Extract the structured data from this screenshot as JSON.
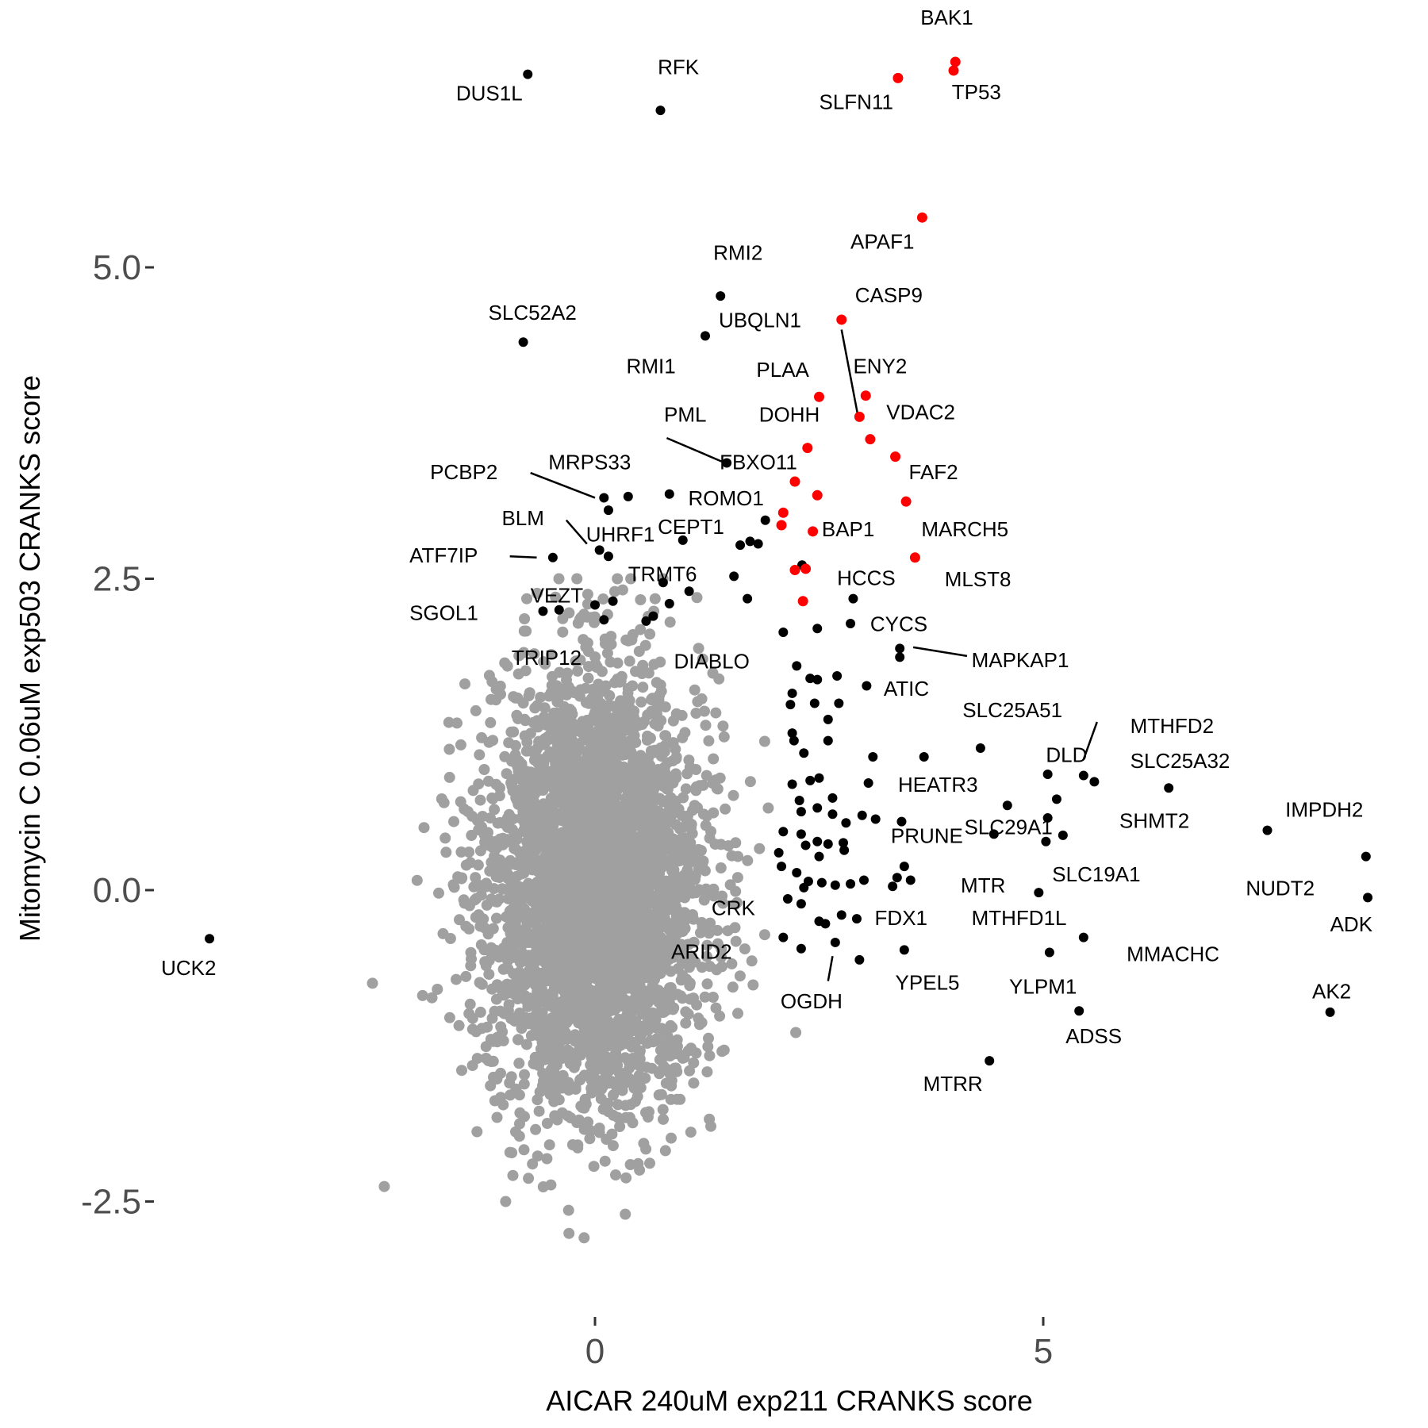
{
  "chart_data": {
    "type": "scatter",
    "title": "",
    "xlabel": "AICAR 240uM exp211 CRANKS score",
    "ylabel": "Mitomycin C 0.06uM exp503 CRANKS score",
    "xlim": [
      -5.0,
      8.8
    ],
    "ylim": [
      -3.38,
      5.78
    ],
    "x_ticks": [
      {
        "value": 0,
        "label": "0"
      },
      {
        "value": 5,
        "label": "5"
      }
    ],
    "y_ticks": [
      {
        "value": -2.5,
        "label": "-2.5"
      },
      {
        "value": 0.0,
        "label": "0.0"
      },
      {
        "value": 2.5,
        "label": "2.5"
      },
      {
        "value": 5.0,
        "label": "5.0"
      }
    ],
    "grid": false,
    "colors": {
      "background": "#ffffff",
      "background_genes": "#a0a0a0",
      "highlighted_genes": "#000000",
      "apoptosis_genes": "#ff0000"
    },
    "background_cloud": {
      "description_count": 4000,
      "center": [
        0.0,
        0.0
      ],
      "sd": [
        0.6,
        0.85
      ]
    },
    "red_points": [
      {
        "label": "BAK1",
        "x": 4.02,
        "y": 6.65
      },
      {
        "label": "TP53",
        "x": 4.0,
        "y": 6.58
      },
      {
        "label": "SLFN11",
        "x": 3.38,
        "y": 6.52
      },
      {
        "label": "APAF1",
        "x": 3.65,
        "y": 5.4
      },
      {
        "label": "CASP9",
        "x": 2.75,
        "y": 4.58
      },
      {
        "label": "ENY2",
        "x": 3.02,
        "y": 3.97
      },
      {
        "label": "PLAA",
        "x": 2.5,
        "y": 3.96
      },
      {
        "label": "DOHH",
        "x": 2.95,
        "y": 3.8
      },
      {
        "label": "VDAC2",
        "x": 3.07,
        "y": 3.62
      },
      {
        "label": "FBXO11",
        "x": 2.37,
        "y": 3.55
      },
      {
        "label": "FAF2",
        "x": 3.35,
        "y": 3.48
      },
      {
        "label": "ROMO1",
        "x": 2.23,
        "y": 3.28
      },
      {
        "label": "",
        "x": 2.48,
        "y": 3.17
      },
      {
        "label": "MARCH5",
        "x": 3.47,
        "y": 3.12
      },
      {
        "label": "",
        "x": 2.1,
        "y": 3.03
      },
      {
        "label": "",
        "x": 2.08,
        "y": 2.93
      },
      {
        "label": "BAP1",
        "x": 2.43,
        "y": 2.88
      },
      {
        "label": "MLST8",
        "x": 3.57,
        "y": 2.67
      },
      {
        "label": "",
        "x": 2.23,
        "y": 2.57
      },
      {
        "label": "",
        "x": 2.35,
        "y": 2.58
      },
      {
        "label": "",
        "x": 2.32,
        "y": 2.32
      }
    ],
    "black_points": [
      {
        "label": "DUS1L",
        "x": -0.75,
        "y": 6.55
      },
      {
        "label": "RFK",
        "x": 0.73,
        "y": 6.26
      },
      {
        "label": "RMI2",
        "x": 1.4,
        "y": 4.77
      },
      {
        "label": "SLC52A2",
        "x": -0.8,
        "y": 4.4
      },
      {
        "label": "RMI1",
        "x": 1.23,
        "y": 4.45
      },
      {
        "label": "PML",
        "x": 1.47,
        "y": 3.43
      },
      {
        "label": "PCBP2",
        "x": 0.1,
        "y": 3.15
      },
      {
        "label": "MRPS33",
        "x": 0.37,
        "y": 3.16
      },
      {
        "label": "",
        "x": 0.83,
        "y": 3.18
      },
      {
        "label": "",
        "x": 0.15,
        "y": 3.05
      },
      {
        "label": "CEPT1",
        "x": 0.98,
        "y": 2.81
      },
      {
        "label": "",
        "x": 1.9,
        "y": 2.97
      },
      {
        "label": "",
        "x": 1.62,
        "y": 2.77
      },
      {
        "label": "",
        "x": 1.73,
        "y": 2.8
      },
      {
        "label": "",
        "x": 1.82,
        "y": 2.78
      },
      {
        "label": "BLM",
        "x": 0.05,
        "y": 2.73
      },
      {
        "label": "UHRF1",
        "x": 0.15,
        "y": 2.68
      },
      {
        "label": "ATF7IP",
        "x": -0.47,
        "y": 2.67
      },
      {
        "label": "HCCS",
        "x": 2.31,
        "y": 2.61
      },
      {
        "label": "TRMT6",
        "x": 1.55,
        "y": 2.52
      },
      {
        "label": "",
        "x": 0.76,
        "y": 2.47
      },
      {
        "label": "",
        "x": 1.05,
        "y": 2.4
      },
      {
        "label": "",
        "x": 1.7,
        "y": 2.34
      },
      {
        "label": "VEZT",
        "x": 0.2,
        "y": 2.32
      },
      {
        "label": "",
        "x": 0.0,
        "y": 2.29
      },
      {
        "label": "",
        "x": 0.83,
        "y": 2.3
      },
      {
        "label": "",
        "x": 2.88,
        "y": 2.34
      },
      {
        "label": "SGOL1",
        "x": -0.58,
        "y": 2.24
      },
      {
        "label": "",
        "x": -0.4,
        "y": 2.25
      },
      {
        "label": "",
        "x": 0.65,
        "y": 2.2
      },
      {
        "label": "",
        "x": 0.57,
        "y": 2.16
      },
      {
        "label": "TRIP12",
        "x": 0.1,
        "y": 2.17
      },
      {
        "label": "CYCS",
        "x": 2.85,
        "y": 2.14
      },
      {
        "label": "",
        "x": 2.1,
        "y": 2.07
      },
      {
        "label": "",
        "x": 2.48,
        "y": 2.1
      },
      {
        "label": "MAPKAP1",
        "x": 3.4,
        "y": 1.94
      },
      {
        "label": "",
        "x": 3.4,
        "y": 1.87
      },
      {
        "label": "DIABLO",
        "x": 2.25,
        "y": 1.8
      },
      {
        "label": "",
        "x": 2.7,
        "y": 1.72
      },
      {
        "label": "",
        "x": 2.4,
        "y": 1.7
      },
      {
        "label": "",
        "x": 2.48,
        "y": 1.69
      },
      {
        "label": "ATIC",
        "x": 3.03,
        "y": 1.64
      },
      {
        "label": "",
        "x": 2.2,
        "y": 1.58
      },
      {
        "label": "",
        "x": 2.45,
        "y": 1.5
      },
      {
        "label": "",
        "x": 2.72,
        "y": 1.5
      },
      {
        "label": "",
        "x": 2.18,
        "y": 1.49
      },
      {
        "label": "",
        "x": 2.6,
        "y": 1.37
      },
      {
        "label": "",
        "x": 2.2,
        "y": 1.26
      },
      {
        "label": "",
        "x": 2.22,
        "y": 1.2
      },
      {
        "label": "",
        "x": 2.6,
        "y": 1.2
      },
      {
        "label": "",
        "x": 2.33,
        "y": 1.1
      },
      {
        "label": "SLC25A51",
        "x": 4.3,
        "y": 1.14
      },
      {
        "label": "",
        "x": 3.1,
        "y": 1.07
      },
      {
        "label": "",
        "x": 3.67,
        "y": 1.07
      },
      {
        "label": "MTHFD2",
        "x": 5.57,
        "y": 0.87
      },
      {
        "label": "DLD",
        "x": 5.45,
        "y": 0.92
      },
      {
        "label": "",
        "x": 5.05,
        "y": 0.93
      },
      {
        "label": "SLC25A32",
        "x": 6.4,
        "y": 0.82
      },
      {
        "label": "",
        "x": 2.5,
        "y": 0.9
      },
      {
        "label": "",
        "x": 2.4,
        "y": 0.88
      },
      {
        "label": "",
        "x": 3.05,
        "y": 0.86
      },
      {
        "label": "",
        "x": 2.2,
        "y": 0.85
      },
      {
        "label": "",
        "x": 2.65,
        "y": 0.74
      },
      {
        "label": "",
        "x": 2.28,
        "y": 0.72
      },
      {
        "label": "",
        "x": 2.48,
        "y": 0.66
      },
      {
        "label": "HEATR3",
        "x": 4.6,
        "y": 0.68
      },
      {
        "label": "",
        "x": 5.15,
        "y": 0.73
      },
      {
        "label": "",
        "x": 2.3,
        "y": 0.63
      },
      {
        "label": "",
        "x": 2.65,
        "y": 0.61
      },
      {
        "label": "",
        "x": 2.98,
        "y": 0.6
      },
      {
        "label": "",
        "x": 3.13,
        "y": 0.57
      },
      {
        "label": "",
        "x": 2.8,
        "y": 0.54
      },
      {
        "label": "",
        "x": 3.42,
        "y": 0.55
      },
      {
        "label": "SHMT2",
        "x": 5.05,
        "y": 0.58
      },
      {
        "label": "IMPDH2",
        "x": 7.5,
        "y": 0.48
      },
      {
        "label": "",
        "x": 2.1,
        "y": 0.47
      },
      {
        "label": "",
        "x": 2.3,
        "y": 0.45
      },
      {
        "label": "PRUNE",
        "x": 4.45,
        "y": 0.45
      },
      {
        "label": "SLC29A1",
        "x": 5.22,
        "y": 0.44
      },
      {
        "label": "",
        "x": 5.03,
        "y": 0.39
      },
      {
        "label": "",
        "x": 2.48,
        "y": 0.39
      },
      {
        "label": "",
        "x": 2.6,
        "y": 0.37
      },
      {
        "label": "",
        "x": 2.77,
        "y": 0.38
      },
      {
        "label": "",
        "x": 2.35,
        "y": 0.36
      },
      {
        "label": "",
        "x": 2.78,
        "y": 0.32
      },
      {
        "label": "",
        "x": 2.05,
        "y": 0.3
      },
      {
        "label": "",
        "x": 2.5,
        "y": 0.27
      },
      {
        "label": "NUDT2",
        "x": 8.6,
        "y": 0.27
      },
      {
        "label": "",
        "x": 2.08,
        "y": 0.19
      },
      {
        "label": "",
        "x": 3.45,
        "y": 0.19
      },
      {
        "label": "SLC19A1",
        "x": 3.37,
        "y": 0.1
      },
      {
        "label": "",
        "x": 3.52,
        "y": 0.08
      },
      {
        "label": "",
        "x": 2.25,
        "y": 0.14
      },
      {
        "label": "",
        "x": 2.38,
        "y": 0.07
      },
      {
        "label": "",
        "x": 2.53,
        "y": 0.06
      },
      {
        "label": "",
        "x": 2.33,
        "y": 0.02
      },
      {
        "label": "",
        "x": 2.68,
        "y": 0.04
      },
      {
        "label": "",
        "x": 3.0,
        "y": 0.08
      },
      {
        "label": "",
        "x": 3.32,
        "y": 0.03
      },
      {
        "label": "",
        "x": 2.85,
        "y": 0.05
      },
      {
        "label": "MTR",
        "x": 4.95,
        "y": -0.02
      },
      {
        "label": "ADK",
        "x": 8.62,
        "y": -0.06
      },
      {
        "label": "CRK",
        "x": 2.15,
        "y": -0.07
      },
      {
        "label": "",
        "x": 2.3,
        "y": -0.11
      },
      {
        "label": "FDX1",
        "x": 2.92,
        "y": -0.23
      },
      {
        "label": "",
        "x": 2.75,
        "y": -0.2
      },
      {
        "label": "",
        "x": 2.57,
        "y": -0.27
      },
      {
        "label": "",
        "x": 2.5,
        "y": -0.25
      },
      {
        "label": "MTHFD1L",
        "x": 5.45,
        "y": -0.38
      },
      {
        "label": "",
        "x": 2.1,
        "y": -0.38
      },
      {
        "label": "ARID2",
        "x": 2.68,
        "y": -0.42
      },
      {
        "label": "",
        "x": 2.3,
        "y": -0.47
      },
      {
        "label": "",
        "x": 3.45,
        "y": -0.48
      },
      {
        "label": "MMACHC",
        "x": 5.07,
        "y": -0.5
      },
      {
        "label": "OGDH",
        "x": 2.95,
        "y": -0.56
      },
      {
        "label": "UCK2",
        "x": -4.3,
        "y": -0.39
      },
      {
        "label": "ADSS",
        "x": 5.4,
        "y": -0.97
      },
      {
        "label": "AK2",
        "x": 8.2,
        "y": -0.98
      },
      {
        "label": "MTRR",
        "x": 4.4,
        "y": -1.37
      }
    ],
    "annotations": [
      {
        "text": "BAK1",
        "x": 3.63,
        "y": 6.95
      },
      {
        "text": "TP53",
        "x": 3.98,
        "y": 6.35
      },
      {
        "text": "SLFN11",
        "x": 2.5,
        "y": 6.27
      },
      {
        "text": "DUS1L",
        "x": -1.55,
        "y": 6.34
      },
      {
        "text": "RFK",
        "x": 0.7,
        "y": 6.55
      },
      {
        "text": "APAF1",
        "x": 2.85,
        "y": 5.15
      },
      {
        "text": "RMI2",
        "x": 1.32,
        "y": 5.06
      },
      {
        "text": "CASP9",
        "x": 2.9,
        "y": 4.72
      },
      {
        "text": "UBQLN1",
        "x": 1.38,
        "y": 4.52
      },
      {
        "text": "SLC52A2",
        "x": -1.19,
        "y": 4.58
      },
      {
        "text": "RMI1",
        "x": 0.35,
        "y": 4.15
      },
      {
        "text": "PLAA",
        "x": 1.8,
        "y": 4.12
      },
      {
        "text": "ENY2",
        "x": 2.88,
        "y": 4.15
      },
      {
        "text": "PML",
        "x": 0.77,
        "y": 3.76
      },
      {
        "text": "DOHH",
        "x": 1.83,
        "y": 3.76
      },
      {
        "text": "VDAC2",
        "x": 3.25,
        "y": 3.78
      },
      {
        "text": "PCBP2",
        "x": -1.84,
        "y": 3.3
      },
      {
        "text": "MRPS33",
        "x": -0.52,
        "y": 3.38
      },
      {
        "text": "FBXO11",
        "x": 1.39,
        "y": 3.38
      },
      {
        "text": "FAF2",
        "x": 3.5,
        "y": 3.3
      },
      {
        "text": "ROMO1",
        "x": 1.04,
        "y": 3.09
      },
      {
        "text": "BLM",
        "x": -1.04,
        "y": 2.93
      },
      {
        "text": "UHRF1",
        "x": -0.1,
        "y": 2.8
      },
      {
        "text": "CEPT1",
        "x": 0.7,
        "y": 2.86
      },
      {
        "text": "BAP1",
        "x": 2.53,
        "y": 2.84
      },
      {
        "text": "MARCH5",
        "x": 3.64,
        "y": 2.84
      },
      {
        "text": "ATF7IP",
        "x": -2.07,
        "y": 2.63
      },
      {
        "text": "TRMT6",
        "x": 0.37,
        "y": 2.48
      },
      {
        "text": "HCCS",
        "x": 2.7,
        "y": 2.45
      },
      {
        "text": "MLST8",
        "x": 3.9,
        "y": 2.44
      },
      {
        "text": "VEZT",
        "x": -0.72,
        "y": 2.31
      },
      {
        "text": "SGOL1",
        "x": -2.07,
        "y": 2.17
      },
      {
        "text": "CYCS",
        "x": 3.07,
        "y": 2.08
      },
      {
        "text": "TRIP12",
        "x": -0.93,
        "y": 1.81
      },
      {
        "text": "MAPKAP1",
        "x": 4.2,
        "y": 1.79
      },
      {
        "text": "DIABLO",
        "x": 0.88,
        "y": 1.78
      },
      {
        "text": "ATIC",
        "x": 3.22,
        "y": 1.56
      },
      {
        "text": "SLC25A51",
        "x": 4.1,
        "y": 1.39
      },
      {
        "text": "MTHFD2",
        "x": 5.97,
        "y": 1.26
      },
      {
        "text": "DLD",
        "x": 5.03,
        "y": 1.03
      },
      {
        "text": "SLC25A32",
        "x": 5.97,
        "y": 0.98
      },
      {
        "text": "HEATR3",
        "x": 3.38,
        "y": 0.79
      },
      {
        "text": "IMPDH2",
        "x": 7.7,
        "y": 0.59
      },
      {
        "text": "SHMT2",
        "x": 5.85,
        "y": 0.5
      },
      {
        "text": "PRUNE",
        "x": 3.3,
        "y": 0.38
      },
      {
        "text": "SLC29A1",
        "x": 4.12,
        "y": 0.45
      },
      {
        "text": "SLC19A1",
        "x": 5.1,
        "y": 0.07
      },
      {
        "text": "MTR",
        "x": 4.08,
        "y": -0.02
      },
      {
        "text": "NUDT2",
        "x": 7.26,
        "y": -0.04
      },
      {
        "text": "ADK",
        "x": 8.2,
        "y": -0.33
      },
      {
        "text": "CRK",
        "x": 1.3,
        "y": -0.2
      },
      {
        "text": "FDX1",
        "x": 3.12,
        "y": -0.28
      },
      {
        "text": "MTHFD1L",
        "x": 4.2,
        "y": -0.28
      },
      {
        "text": "ARID2",
        "x": 0.85,
        "y": -0.55
      },
      {
        "text": "MMACHC",
        "x": 5.93,
        "y": -0.57
      },
      {
        "text": "UCK2",
        "x": -4.84,
        "y": -0.68
      },
      {
        "text": "YPEL5",
        "x": 3.35,
        "y": -0.8
      },
      {
        "text": "YLPM1",
        "x": 4.62,
        "y": -0.83
      },
      {
        "text": "OGDH",
        "x": 2.07,
        "y": -0.95
      },
      {
        "text": "AK2",
        "x": 8.0,
        "y": -0.87
      },
      {
        "text": "ADSS",
        "x": 5.25,
        "y": -1.23
      },
      {
        "text": "MTRR",
        "x": 3.66,
        "y": -1.61
      }
    ],
    "leader_lines": [
      {
        "from": [
          0.8,
          3.63
        ],
        "to": [
          1.45,
          3.43
        ]
      },
      {
        "from": [
          -0.72,
          3.35
        ],
        "to": [
          0.0,
          3.15
        ]
      },
      {
        "from": [
          -0.32,
          2.97
        ],
        "to": [
          -0.09,
          2.78
        ]
      },
      {
        "from": [
          -0.95,
          2.68
        ],
        "to": [
          -0.65,
          2.67
        ]
      },
      {
        "from": [
          2.75,
          4.5
        ],
        "to": [
          2.93,
          3.82
        ]
      },
      {
        "from": [
          3.55,
          1.95
        ],
        "to": [
          4.15,
          1.88
        ]
      },
      {
        "from": [
          5.6,
          1.35
        ],
        "to": [
          5.45,
          1.05
        ]
      },
      {
        "from": [
          2.65,
          -0.53
        ],
        "to": [
          2.6,
          -0.73
        ]
      }
    ]
  }
}
